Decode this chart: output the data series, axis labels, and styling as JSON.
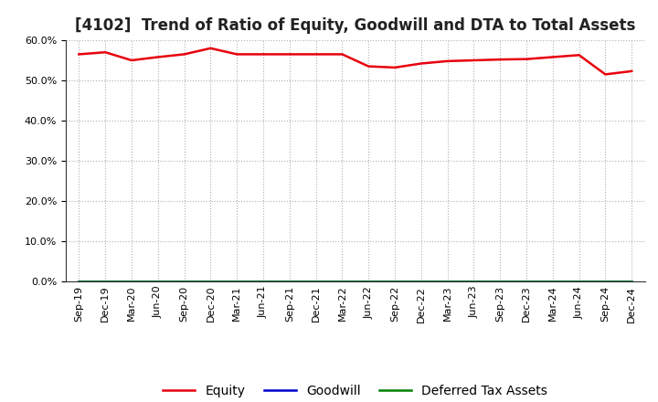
{
  "title": "[4102]  Trend of Ratio of Equity, Goodwill and DTA to Total Assets",
  "x_labels": [
    "Sep-19",
    "Dec-19",
    "Mar-20",
    "Jun-20",
    "Sep-20",
    "Dec-20",
    "Mar-21",
    "Jun-21",
    "Sep-21",
    "Dec-21",
    "Mar-22",
    "Jun-22",
    "Sep-22",
    "Dec-22",
    "Mar-23",
    "Jun-23",
    "Sep-23",
    "Dec-23",
    "Mar-24",
    "Jun-24",
    "Sep-24",
    "Dec-24"
  ],
  "equity": [
    56.5,
    57.0,
    55.0,
    55.8,
    56.5,
    58.0,
    56.5,
    56.5,
    56.5,
    56.5,
    56.5,
    53.5,
    53.2,
    54.2,
    54.8,
    55.0,
    55.2,
    55.3,
    55.8,
    56.3,
    51.5,
    52.3
  ],
  "goodwill": [
    0.0,
    0.0,
    0.0,
    0.0,
    0.0,
    0.0,
    0.0,
    0.0,
    0.0,
    0.0,
    0.0,
    0.0,
    0.0,
    0.0,
    0.0,
    0.0,
    0.0,
    0.0,
    0.0,
    0.0,
    0.0,
    0.0
  ],
  "dta": [
    0.0,
    0.0,
    0.0,
    0.0,
    0.0,
    0.0,
    0.0,
    0.0,
    0.0,
    0.0,
    0.0,
    0.0,
    0.0,
    0.0,
    0.0,
    0.0,
    0.0,
    0.0,
    0.0,
    0.0,
    0.0,
    0.0
  ],
  "equity_color": "#e8000d",
  "goodwill_color": "#0000cd",
  "dta_color": "#008000",
  "ylim": [
    0,
    60
  ],
  "yticks": [
    0,
    10,
    20,
    30,
    40,
    50,
    60
  ],
  "background_color": "#ffffff",
  "grid_color": "#b0b0b0",
  "title_fontsize": 12,
  "tick_fontsize": 8,
  "legend_fontsize": 10,
  "line_width": 1.8
}
